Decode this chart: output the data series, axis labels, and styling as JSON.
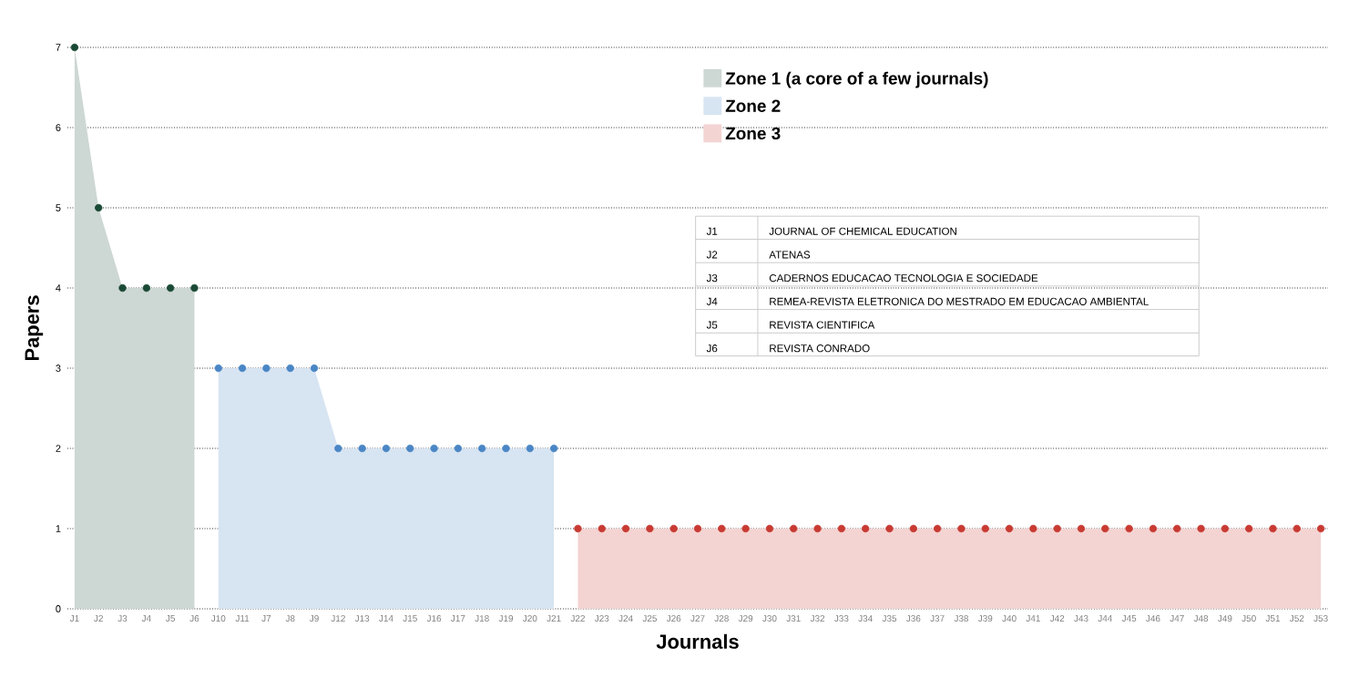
{
  "chart_data": {
    "type": "area",
    "xlabel": "Journals",
    "ylabel": "Papers",
    "categories": [
      "J1",
      "J2",
      "J3",
      "J4",
      "J5",
      "J6",
      "J10",
      "J11",
      "J7",
      "J8",
      "J9",
      "J12",
      "J13",
      "J14",
      "J15",
      "J16",
      "J17",
      "J18",
      "J19",
      "J20",
      "J21",
      "J22",
      "J23",
      "J24",
      "J25",
      "J26",
      "J27",
      "J28",
      "J29",
      "J30",
      "J31",
      "J32",
      "J33",
      "J34",
      "J35",
      "J36",
      "J37",
      "J38",
      "J39",
      "J40",
      "J41",
      "J42",
      "J43",
      "J44",
      "J45",
      "J46",
      "J47",
      "J48",
      "J49",
      "J50",
      "J51",
      "J52",
      "J53"
    ],
    "series": [
      {
        "name": "Zone 1 (a core of a few journals)",
        "color": "#1a4a35",
        "values": [
          7,
          5,
          4,
          4,
          4,
          4,
          null,
          null,
          null,
          null,
          null,
          null,
          null,
          null,
          null,
          null,
          null,
          null,
          null,
          null,
          null,
          null,
          null,
          null,
          null,
          null,
          null,
          null,
          null,
          null,
          null,
          null,
          null,
          null,
          null,
          null,
          null,
          null,
          null,
          null,
          null,
          null,
          null,
          null,
          null,
          null,
          null,
          null,
          null,
          null,
          null,
          null,
          null
        ]
      },
      {
        "name": "Zone 2",
        "color": "#4a86c5",
        "values": [
          null,
          null,
          null,
          null,
          null,
          null,
          3,
          3,
          3,
          3,
          3,
          2,
          2,
          2,
          2,
          2,
          2,
          2,
          2,
          2,
          2,
          null,
          null,
          null,
          null,
          null,
          null,
          null,
          null,
          null,
          null,
          null,
          null,
          null,
          null,
          null,
          null,
          null,
          null,
          null,
          null,
          null,
          null,
          null,
          null,
          null,
          null,
          null,
          null,
          null,
          null,
          null,
          null
        ]
      },
      {
        "name": "Zone 3",
        "color": "#c83a32",
        "values": [
          null,
          null,
          null,
          null,
          null,
          null,
          null,
          null,
          null,
          null,
          null,
          null,
          null,
          null,
          null,
          null,
          null,
          null,
          null,
          null,
          null,
          1,
          1,
          1,
          1,
          1,
          1,
          1,
          1,
          1,
          1,
          1,
          1,
          1,
          1,
          1,
          1,
          1,
          1,
          1,
          1,
          1,
          1,
          1,
          1,
          1,
          1,
          1,
          1,
          1,
          1,
          1,
          1
        ]
      }
    ],
    "ylim": [
      0,
      7
    ],
    "yticks": [
      0,
      1,
      2,
      3,
      4,
      5,
      6,
      7
    ],
    "grid": "y",
    "legend": "top",
    "marker": "circle",
    "annotations": [
      "J1",
      "JOURNAL OF CHEMICAL EDUCATION",
      "J2",
      "ATENAS",
      "J3",
      "CADERNOS EDUCACAO TECNOLOGIA E SOCIEDADE",
      "J4",
      "REMEA-REVISTA ELETRONICA DO MESTRADO EM EDUCACAO AMBIENTAL",
      "J5",
      "REVISTA CIENTIFICA",
      "J6",
      "REVISTA CONRADO"
    ]
  }
}
